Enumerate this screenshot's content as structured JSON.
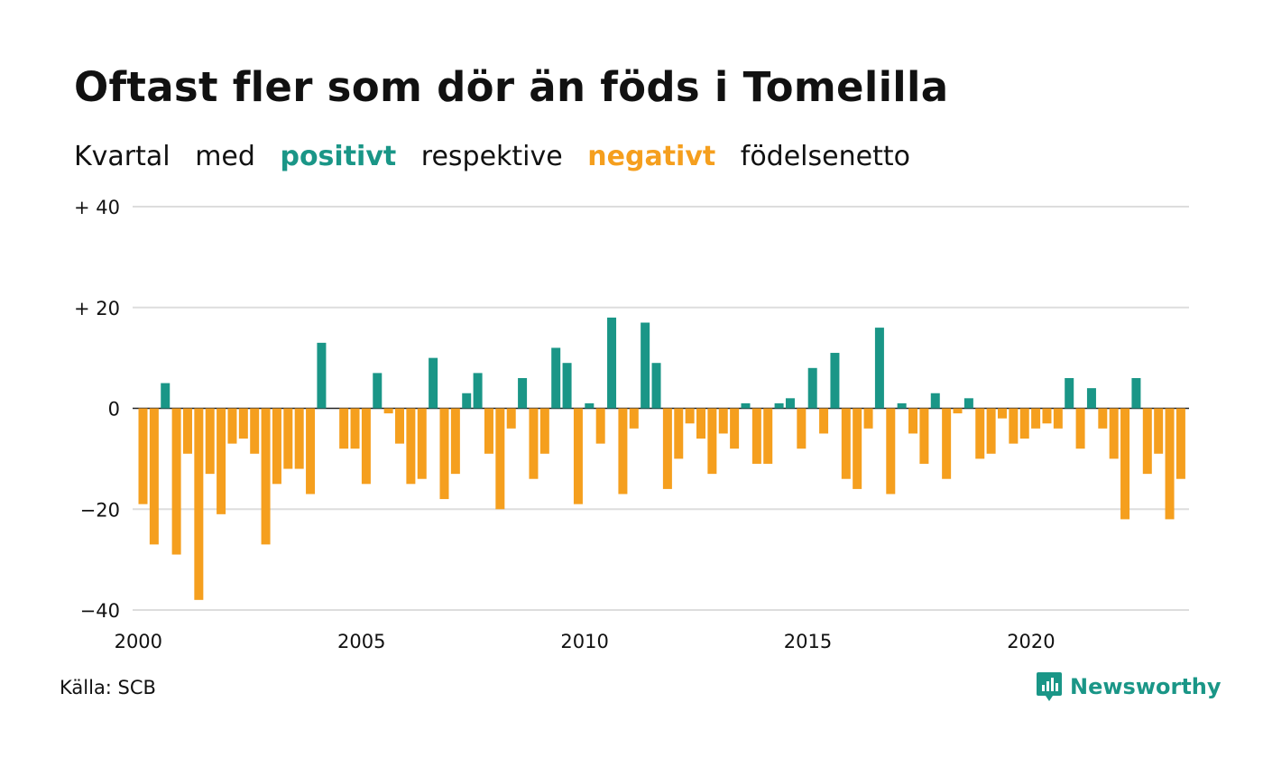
{
  "title": "Oftast fler som dör än föds i Tomelilla",
  "subtitle": {
    "part1": "Kvartal",
    "part2": "med",
    "positive": "positivt",
    "part3": "respektive",
    "negative": "negativt",
    "part4": "födelsenetto"
  },
  "source": "Källa: SCB",
  "brand": "Newsworthy",
  "colors": {
    "positive": "#1a9687",
    "negative": "#f59f1e",
    "grid": "#dddddd",
    "text": "#111111"
  },
  "chart_data": {
    "type": "bar",
    "x_start": "2000 Q1",
    "x_ticks": [
      "2000",
      "2005",
      "2010",
      "2015",
      "2020"
    ],
    "y_ticks": [
      "+ 40",
      "+ 20",
      "0",
      "−20",
      "−40"
    ],
    "ylim": [
      -40,
      40
    ],
    "grid": true,
    "values": [
      -19,
      -27,
      5,
      -29,
      -9,
      -38,
      -13,
      -21,
      -7,
      -6,
      -9,
      -27,
      -15,
      -12,
      -12,
      -17,
      13,
      0,
      -8,
      -8,
      -15,
      7,
      -1,
      -7,
      -15,
      -14,
      10,
      -18,
      -13,
      3,
      7,
      -9,
      -20,
      -4,
      6,
      -14,
      -9,
      12,
      9,
      -19,
      1,
      -7,
      18,
      -17,
      -4,
      17,
      9,
      -16,
      -10,
      -3,
      -6,
      -13,
      -5,
      -8,
      1,
      -11,
      -11,
      1,
      2,
      -8,
      8,
      -5,
      11,
      -14,
      -16,
      -4,
      16,
      -17,
      1,
      -5,
      -11,
      3,
      -14,
      -1,
      2,
      -10,
      -9,
      -2,
      -7,
      -6,
      -4,
      -3,
      -4,
      6,
      -8,
      4,
      -4,
      -10,
      -22,
      6,
      -13,
      -9,
      -22,
      -14
    ]
  }
}
